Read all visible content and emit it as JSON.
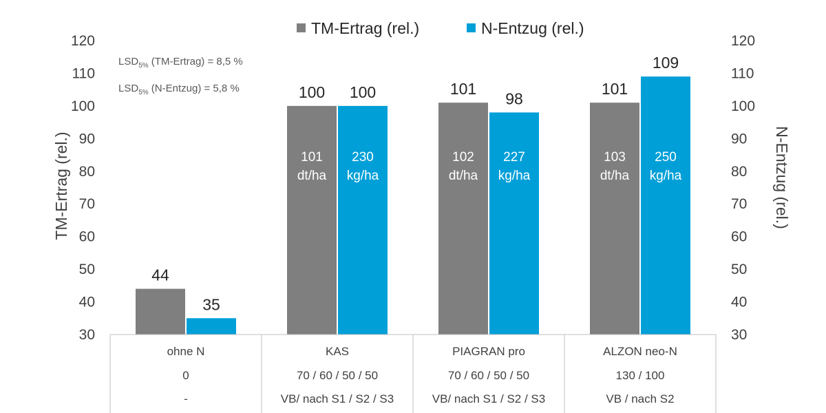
{
  "chart_data": {
    "type": "bar",
    "legend": {
      "placement": "top-center",
      "entries": [
        "TM-Ertrag (rel.)",
        "N-Entzug (rel.)"
      ]
    },
    "categories": [
      "ohne N",
      "KAS",
      "PIAGRAN pro",
      "ALZON neo-N"
    ],
    "category_rows": [
      [
        "ohne N",
        "KAS",
        "PIAGRAN pro",
        "ALZON neo-N"
      ],
      [
        "0",
        "70 / 60 / 50 / 50",
        "70 / 60 / 50 / 50",
        "130 / 100"
      ],
      [
        "-",
        "VB/ nach S1 / S2 / S3",
        "VB/ nach S1 / S2 / S3",
        "VB / nach S2"
      ]
    ],
    "series": [
      {
        "name": "TM-Ertrag (rel.)",
        "color": "#7f7f7f",
        "values": [
          44,
          100,
          101,
          101
        ],
        "inner_labels": [
          null,
          [
            "101",
            "dt/ha"
          ],
          [
            "102",
            "dt/ha"
          ],
          [
            "103",
            "dt/ha"
          ]
        ]
      },
      {
        "name": "N-Entzug (rel.)",
        "color": "#009fd8",
        "values": [
          35,
          100,
          98,
          109
        ],
        "inner_labels": [
          null,
          [
            "230",
            "kg/ha"
          ],
          [
            "227",
            "kg/ha"
          ],
          [
            "250",
            "kg/ha"
          ]
        ]
      }
    ],
    "ylabel": "TM-Ertrag (rel.)",
    "y2label": "N-Entzug (rel.)",
    "ylim": [
      30,
      120
    ],
    "yticks": [
      30,
      40,
      50,
      60,
      70,
      80,
      90,
      100,
      110,
      120
    ],
    "annotations": [
      {
        "base": "LSD",
        "sub": "5%",
        "rest": " (TM-Ertrag) =  8,5 %"
      },
      {
        "base": "LSD",
        "sub": "5%",
        "rest": " (N-Entzug) =  5,8 %"
      }
    ]
  }
}
